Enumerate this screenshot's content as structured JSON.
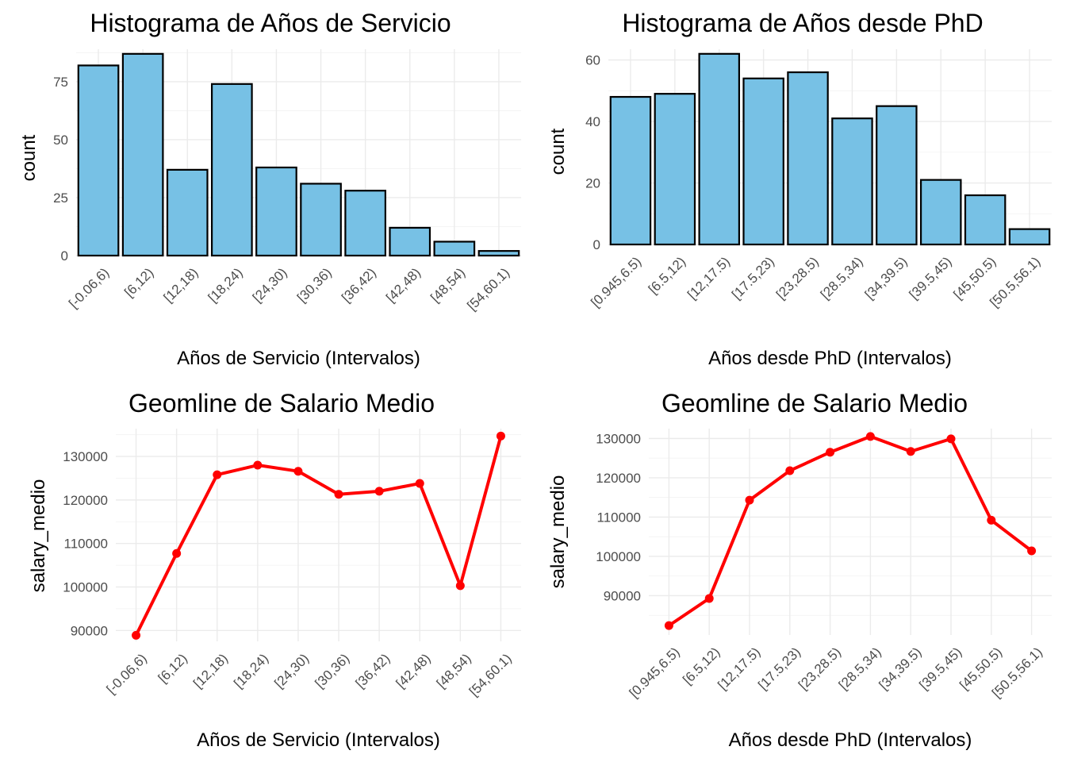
{
  "chart_data": [
    {
      "type": "bar",
      "title": "Histograma de Años de Servicio",
      "xlabel": "Años de Servicio (Intervalos)",
      "ylabel": "count",
      "categories": [
        "[-0.06,6)",
        "[6,12)",
        "[12,18)",
        "[18,24)",
        "[24,30)",
        "[30,36)",
        "[36,42)",
        "[42,48)",
        "[48,54)",
        "[54,60.1)"
      ],
      "values": [
        82,
        87,
        37,
        74,
        38,
        31,
        28,
        12,
        6,
        2
      ],
      "ylim": [
        0,
        89
      ],
      "yticks": [
        0,
        25,
        50,
        75
      ],
      "ytick_labels": [
        "0",
        "25",
        "50",
        "75"
      ],
      "grid": true,
      "colors": {
        "fill": "#77C1E5",
        "stroke": "#000000"
      }
    },
    {
      "type": "bar",
      "title": "Histograma de Años desde PhD",
      "xlabel": "Años desde PhD (Intervalos)",
      "ylabel": "count",
      "categories": [
        "[0.945,6.5)",
        "[6.5,12)",
        "[12,17.5)",
        "[17.5,23)",
        "[23,28.5)",
        "[28.5,34)",
        "[34,39.5)",
        "[39.5,45)",
        "[45,50.5)",
        "[50.5,56.1)"
      ],
      "values": [
        48,
        49,
        62,
        54,
        56,
        41,
        45,
        21,
        16,
        5
      ],
      "ylim": [
        0,
        63.5
      ],
      "yticks": [
        0,
        20,
        40,
        60
      ],
      "ytick_labels": [
        "0",
        "20",
        "40",
        "60"
      ],
      "grid": true,
      "colors": {
        "fill": "#77C1E5",
        "stroke": "#000000"
      }
    },
    {
      "type": "line",
      "title": "Geomline de Salario Medio",
      "xlabel": "Años de Servicio (Intervalos)",
      "ylabel": "salary_medio",
      "categories": [
        "[-0.06,6)",
        "[6,12)",
        "[12,18)",
        "[18,24)",
        "[24,30)",
        "[30,36)",
        "[36,42)",
        "[42,48)",
        "[48,54)",
        "[54,60.1)"
      ],
      "values": [
        88900,
        107700,
        125800,
        128000,
        126600,
        121300,
        122000,
        123800,
        100300,
        134700
      ],
      "ylim": [
        87500,
        136400
      ],
      "yticks": [
        90000,
        100000,
        110000,
        120000,
        130000
      ],
      "ytick_labels": [
        "90000",
        "100000",
        "110000",
        "120000",
        "130000"
      ],
      "grid": true,
      "colors": {
        "line": "#FF0000"
      }
    },
    {
      "type": "line",
      "title": "Geomline de Salario Medio",
      "xlabel": "Años desde PhD (Intervalos)",
      "ylabel": "salary_medio",
      "categories": [
        "[0.945,6.5)",
        "[6.5,12)",
        "[12,17.5)",
        "[17.5,23)",
        "[23,28.5)",
        "[28.5,34)",
        "[34,39.5)",
        "[39.5,45)",
        "[45,50.5)",
        "[50.5,56.1)"
      ],
      "values": [
        82400,
        89300,
        114300,
        121800,
        126500,
        130500,
        126700,
        129900,
        109200,
        101400
      ],
      "ylim": [
        80000,
        132500
      ],
      "yticks": [
        90000,
        100000,
        110000,
        120000,
        130000
      ],
      "ytick_labels": [
        "90000",
        "100000",
        "110000",
        "120000",
        "130000"
      ],
      "grid": true,
      "colors": {
        "line": "#FF0000"
      }
    }
  ]
}
